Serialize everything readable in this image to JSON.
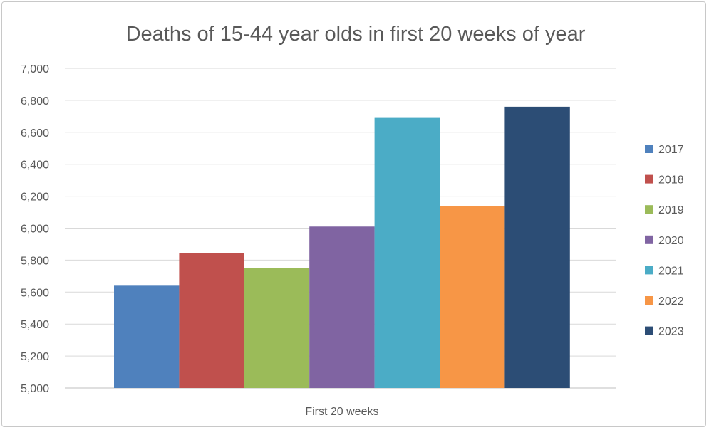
{
  "chart_data": {
    "type": "bar",
    "title": "Deaths of 15-44 year olds in first 20 weeks of year",
    "categories": [
      "First 20 weeks"
    ],
    "series": [
      {
        "name": "2017",
        "values": [
          5640
        ],
        "color": "#4F81BD"
      },
      {
        "name": "2018",
        "values": [
          5845
        ],
        "color": "#C0504D"
      },
      {
        "name": "2019",
        "values": [
          5750
        ],
        "color": "#9BBB59"
      },
      {
        "name": "2020",
        "values": [
          6010
        ],
        "color": "#8064A2"
      },
      {
        "name": "2021",
        "values": [
          6690
        ],
        "color": "#4BACC6"
      },
      {
        "name": "2022",
        "values": [
          6140
        ],
        "color": "#F79646"
      },
      {
        "name": "2023",
        "values": [
          6760
        ],
        "color": "#2C4D75"
      }
    ],
    "yticks": [
      "5,000",
      "5,200",
      "5,400",
      "5,600",
      "5,800",
      "6,000",
      "6,200",
      "6,400",
      "6,600",
      "6,800",
      "7,000"
    ],
    "ylim": [
      5000,
      7000
    ],
    "grid": true,
    "legend_position": "right",
    "gridline_color": "#d9d9d9"
  }
}
